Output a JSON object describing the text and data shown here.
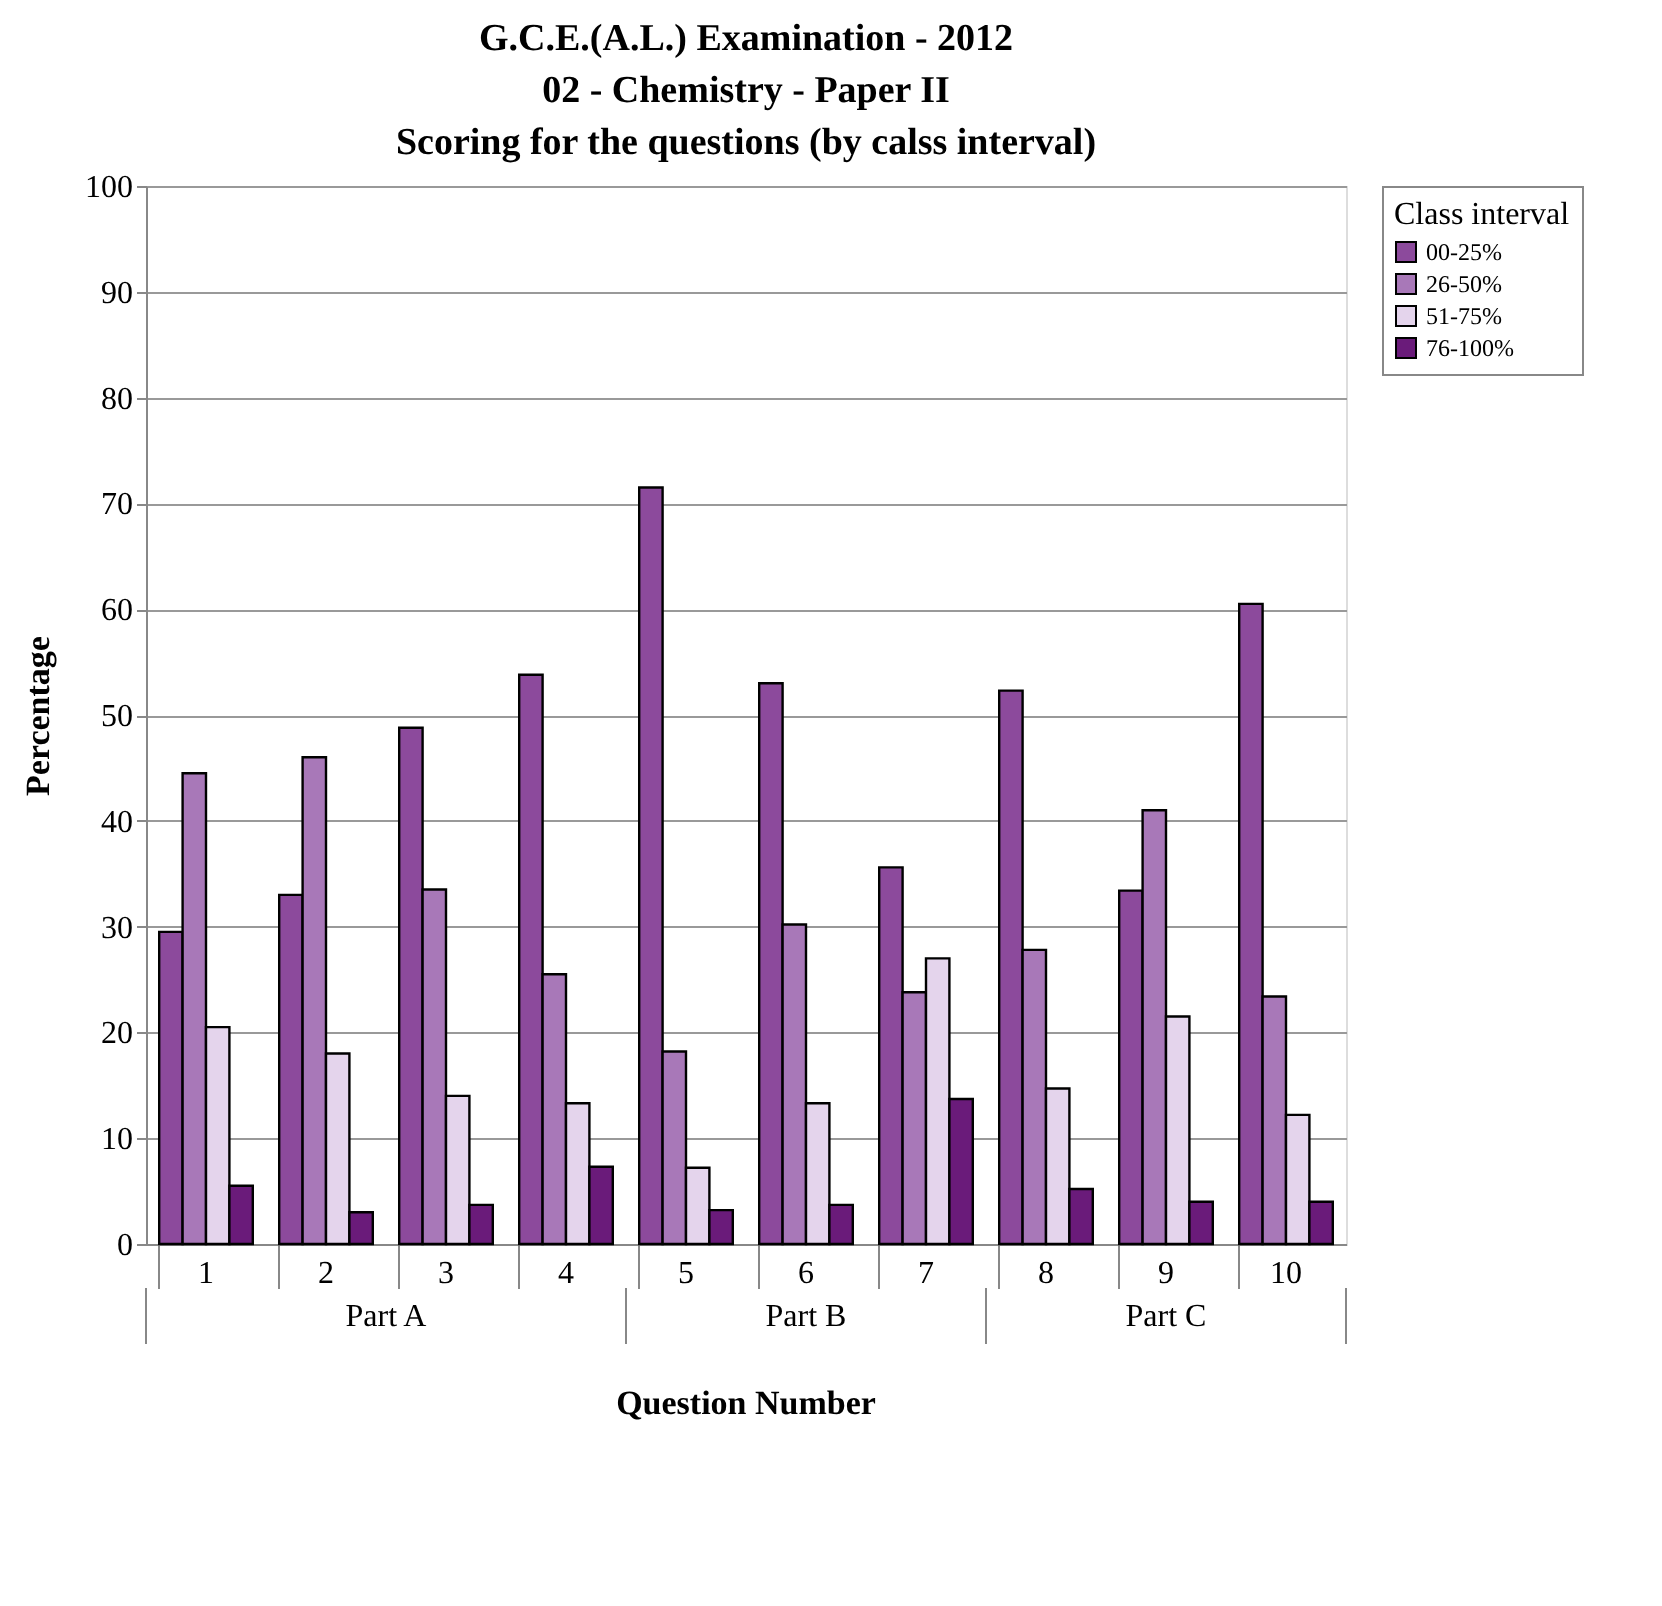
{
  "chart_data": {
    "type": "bar",
    "title": "G.C.E.(A.L.) Examination - 2012\n02 - Chemistry - Paper II\nScoring for the questions (by calss interval)",
    "xlabel": "Question Number",
    "ylabel": "Percentage",
    "legend_title": "Class interval",
    "categories": [
      "1",
      "2",
      "3",
      "4",
      "5",
      "6",
      "7",
      "8",
      "9",
      "10"
    ],
    "series": [
      {
        "name": "00-25%",
        "color": "#8c4a9c",
        "values": [
          29.5,
          33,
          48.8,
          53.8,
          71.5,
          53,
          35.6,
          52.3,
          33.4,
          60.5
        ]
      },
      {
        "name": "26-50%",
        "color": "#a878b8",
        "values": [
          44.5,
          46,
          33.5,
          25.5,
          18.2,
          30.2,
          23.8,
          27.8,
          41,
          23.4
        ]
      },
      {
        "name": "51-75%",
        "color": "#e4d4ec",
        "values": [
          20.5,
          18,
          14,
          13.3,
          7.2,
          13.3,
          27,
          14.7,
          21.5,
          12.2
        ]
      },
      {
        "name": "76-100%",
        "color": "#6a1b7a",
        "values": [
          5.5,
          3,
          3.7,
          7.3,
          3.2,
          3.7,
          13.7,
          5.2,
          4,
          4
        ]
      }
    ],
    "annotations": [
      "Part A",
      "Part B",
      "Part C"
    ],
    "ylim": [
      0,
      100
    ],
    "yticks": [
      0,
      10,
      20,
      30,
      40,
      50,
      60,
      70,
      80,
      90,
      100
    ],
    "grid": "y",
    "legend": "right"
  }
}
